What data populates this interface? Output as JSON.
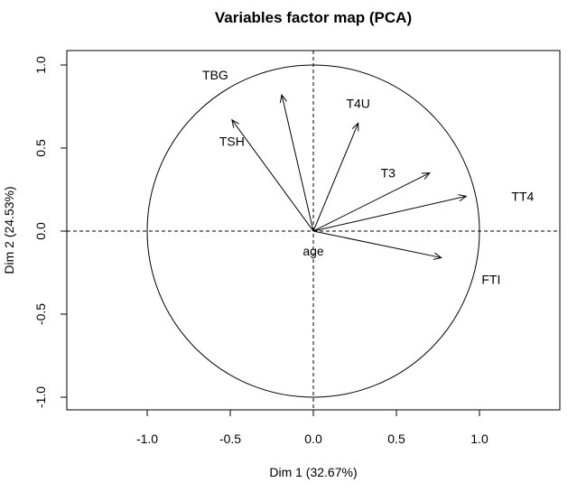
{
  "chart_data": {
    "type": "scatter",
    "title": "Variables factor map (PCA)",
    "xlabel": "Dim 1 (32.67%)",
    "ylabel": "Dim 2 (24.53%)",
    "xlim": [
      -1.47,
      1.47
    ],
    "ylim": [
      -1.08,
      1.08
    ],
    "xticks": [
      "-1.0",
      "-0.5",
      "0.0",
      "0.5",
      "1.0"
    ],
    "yticks": [
      "-1.0",
      "-0.5",
      "0.0",
      "0.5",
      "1.0"
    ],
    "grid": false,
    "correlation_circle_radius": 1.0,
    "reference_lines": [
      {
        "axis": "x",
        "value": 0,
        "style": "dashed"
      },
      {
        "axis": "y",
        "value": 0,
        "style": "dashed"
      }
    ],
    "variables": [
      {
        "name": "TBG",
        "x": -0.19,
        "y": 0.82,
        "label_x": -0.59,
        "label_y": 0.94
      },
      {
        "name": "TSH",
        "x": -0.49,
        "y": 0.67,
        "label_x": -0.49,
        "label_y": 0.54
      },
      {
        "name": "T4U",
        "x": 0.27,
        "y": 0.65,
        "label_x": 0.27,
        "label_y": 0.77
      },
      {
        "name": "T3",
        "x": 0.7,
        "y": 0.35,
        "label_x": 0.45,
        "label_y": 0.35
      },
      {
        "name": "TT4",
        "x": 0.92,
        "y": 0.21,
        "label_x": 1.26,
        "label_y": 0.21
      },
      {
        "name": "FTI",
        "x": 0.77,
        "y": -0.16,
        "label_x": 1.07,
        "label_y": -0.29
      },
      {
        "name": "age",
        "x": 0.0,
        "y": 0.0,
        "label_x": 0.0,
        "label_y": -0.12
      }
    ]
  }
}
